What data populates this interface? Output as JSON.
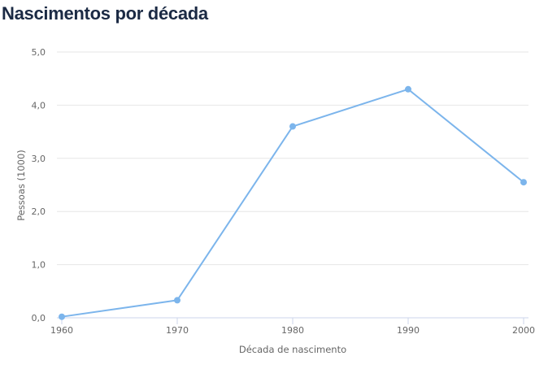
{
  "colors": {
    "series": "#7cb5ec",
    "grid": "#e6e6e6",
    "title": "#1b2a44",
    "text": "#666666"
  },
  "chart_data": {
    "type": "line",
    "title": "Nascimentos por década",
    "xlabel": "Década de nascimento",
    "ylabel": "Pessoas (1000)",
    "x": [
      1960,
      1970,
      1980,
      1990,
      2000
    ],
    "x_tick_labels": [
      "1960",
      "1970",
      "1980",
      "1990",
      "2000"
    ],
    "y_tick_values": [
      0,
      1,
      2,
      3,
      4,
      5
    ],
    "y_tick_labels": [
      "0,0",
      "1,0",
      "2,0",
      "3,0",
      "4,0",
      "5,0"
    ],
    "ylim": [
      0,
      5
    ],
    "xlim": [
      1960,
      2000
    ],
    "grid": true,
    "legend": "none",
    "series": [
      {
        "values": [
          0.02,
          0.33,
          3.6,
          4.3,
          2.55
        ]
      }
    ]
  }
}
